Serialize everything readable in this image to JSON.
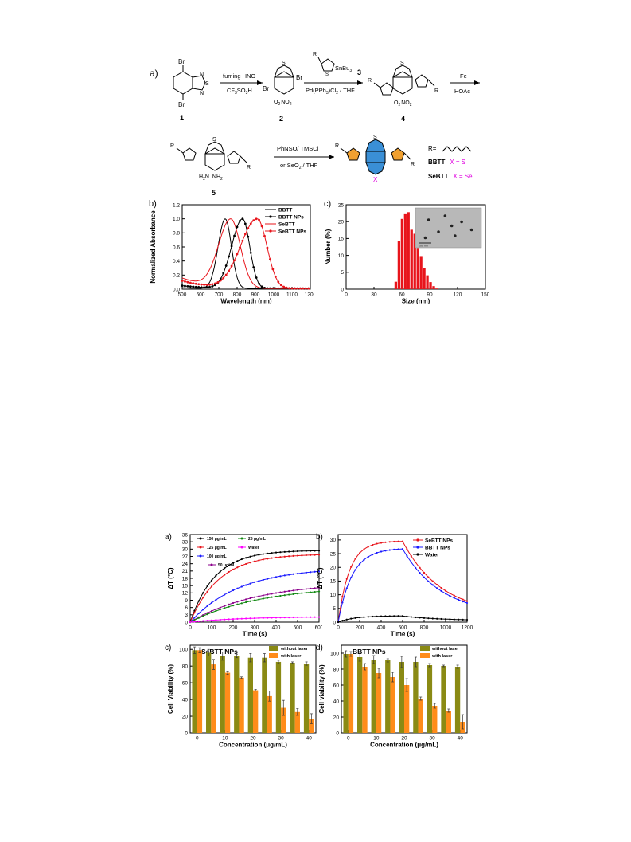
{
  "scheme": {
    "panel": "a)",
    "labels": {
      "c1": "1",
      "c2": "2",
      "c3": "3",
      "c4": "4",
      "c5": "5",
      "br": "Br",
      "no2": "NO",
      "o2n": "O",
      "nh2": "NH",
      "h2n": "H",
      "n": "N",
      "s": "S",
      "r": "R",
      "sub2": "2",
      "sub3": "3",
      "snbu": "SnBu",
      "x": "X"
    },
    "reagents": {
      "step1_top": "fuming HNO",
      "step1_bottom": "CF",
      "step1_so3h": "SO",
      "step1_h": "H",
      "step2_bottom": "Pd(PPh",
      "step2_cl": ")Cl",
      "step2_thf": " / THF",
      "step3_top": "Fe",
      "step3_bottom": "HOAc",
      "step4_top": "PhNSO/ TMSCl",
      "step4_bottom": "or SeO",
      "step4_thf": " / THF"
    },
    "legend": {
      "r_eq": "R=",
      "bbtt": "BBTT",
      "bbtt_x": "X = S",
      "sebtt": "SeBTT",
      "sebtt_x": "X = Se"
    }
  },
  "panel_b_top": {
    "label": "b)",
    "chart_data": {
      "type": "line",
      "xlabel": "Wavelength (nm)",
      "ylabel": "Normalized Absorbance",
      "xlim": [
        500,
        1200
      ],
      "ylim": [
        0.0,
        1.2
      ],
      "xticks": [
        "500",
        "600",
        "700",
        "800",
        "900",
        "1000",
        "1100",
        "1200"
      ],
      "yticks": [
        "0.0",
        "0.2",
        "0.4",
        "0.6",
        "0.8",
        "1.0",
        "1.2"
      ],
      "legend_position": "top-right",
      "series": [
        {
          "name": "BBTT",
          "color": "#000000",
          "marker": false,
          "peak": 735,
          "wl": 55,
          "wr": 48,
          "base": 0.02
        },
        {
          "name": "BBTT NPs",
          "color": "#000000",
          "marker": true,
          "peak": 830,
          "wl": 85,
          "wr": 55,
          "base": 0.05
        },
        {
          "name": "SeBTT",
          "color": "#e8141b",
          "marker": false,
          "peak": 765,
          "wl": 95,
          "wr": 75,
          "base": 0.16
        },
        {
          "name": "SeBTT NPs",
          "color": "#e8141b",
          "marker": true,
          "peak": 910,
          "wl": 130,
          "wr": 75,
          "base": 0.12
        }
      ]
    }
  },
  "panel_c_top": {
    "label": "c)",
    "chart_data": {
      "type": "bar",
      "xlabel": "Size (nm)",
      "ylabel": "Number (%)",
      "xlim": [
        0,
        150
      ],
      "ylim": [
        0,
        25
      ],
      "xticks": [
        "0",
        "30",
        "60",
        "90",
        "120",
        "150"
      ],
      "yticks": [
        "0",
        "5",
        "10",
        "15",
        "20",
        "25"
      ],
      "bin_width": 3.4,
      "x": [
        53.5,
        56.9,
        60.3,
        63.7,
        67.1,
        70.5,
        73.9,
        77.3,
        80.7,
        84.1,
        87.5,
        90.9,
        94.3,
        97.7
      ],
      "values": [
        2.2,
        14.2,
        20.8,
        22.2,
        22.8,
        17.6,
        16.4,
        12.2,
        9.8,
        6.2,
        4.1,
        2.1,
        0.9,
        0.2
      ],
      "color": "#e8141b",
      "inset_scale_text": "200 nm"
    }
  },
  "panel_a_bottom": {
    "label": "a)",
    "chart_data": {
      "type": "line",
      "xlabel": "Time (s)",
      "ylabel": "ΔT (°C)",
      "xlim": [
        0,
        600
      ],
      "ylim": [
        0,
        36
      ],
      "xticks": [
        "0",
        "100",
        "200",
        "300",
        "400",
        "500",
        "600"
      ],
      "yticks": [
        "0",
        "3",
        "6",
        "9",
        "12",
        "15",
        "18",
        "21",
        "24",
        "27",
        "30",
        "33",
        "36"
      ],
      "series": [
        {
          "name": "150 μg/mL",
          "color": "#000000",
          "final": 29.5,
          "tau": 115
        },
        {
          "name": "125 μg/mL",
          "color": "#e8141b",
          "final": 28.0,
          "tau": 135
        },
        {
          "name": "100 μg/mL",
          "color": "#1a1aff",
          "final": 22.5,
          "tau": 230
        },
        {
          "name": "50 μg/mL",
          "color": "#8b008b",
          "final": 16.5,
          "tau": 310
        },
        {
          "name": "25 μg/mL",
          "color": "#118811",
          "final": 15.0,
          "tau": 330
        },
        {
          "name": "Water",
          "color": "#ff00ff",
          "final": 2.3,
          "tau": 250
        }
      ]
    }
  },
  "panel_b_bottom": {
    "label": "b)",
    "chart_data": {
      "type": "line",
      "xlabel": "Time (s)",
      "ylabel": "ΔT (°C)",
      "xlim": [
        0,
        1200
      ],
      "ylim": [
        0,
        32
      ],
      "xticks": [
        "0",
        "200",
        "400",
        "600",
        "800",
        "1000",
        "1200"
      ],
      "yticks": [
        "0",
        "5",
        "10",
        "15",
        "20",
        "25",
        "30"
      ],
      "series": [
        {
          "name": "SeBTT NPs",
          "color": "#e8141b",
          "final": 29.6,
          "tau": 105,
          "off": 600,
          "decay": 360,
          "end": 2.6
        },
        {
          "name": "BBTT NPs",
          "color": "#1a1aff",
          "final": 27.0,
          "tau": 130,
          "off": 600,
          "decay": 360,
          "end": 2.4
        },
        {
          "name": "Water",
          "color": "#000000",
          "final": 2.3,
          "tau": 150,
          "off": 600,
          "decay": 330,
          "end": 0.6
        }
      ]
    }
  },
  "panel_c_bottom": {
    "label": "c)",
    "chart_data": {
      "type": "bar",
      "title": "SeBTT NPs",
      "xlabel": "Concentration (μg/mL)",
      "ylabel": "Cell Viability (%)",
      "xlim": [
        -2.5,
        42.5
      ],
      "ylim": [
        0,
        105
      ],
      "xticks": [
        "0",
        "10",
        "20",
        "30",
        "40"
      ],
      "yticks": [
        "0",
        "20",
        "40",
        "60",
        "80",
        "100"
      ],
      "categories": [
        0,
        5,
        10,
        15,
        20,
        25,
        30,
        35,
        40
      ],
      "series": [
        {
          "name": "without laser",
          "color": "#8a8a14",
          "values": [
            99,
            96,
            92,
            92,
            90,
            90,
            85,
            84,
            83
          ],
          "err": [
            4,
            4,
            5,
            2,
            5,
            5,
            2,
            1,
            2
          ]
        },
        {
          "name": "with laser",
          "color": "#ff8c1a",
          "values": [
            99,
            82,
            72,
            66,
            51,
            44,
            30,
            25,
            17
          ],
          "err": [
            3,
            6,
            2,
            1,
            1,
            6,
            9,
            4,
            6
          ]
        }
      ]
    }
  },
  "panel_d_bottom": {
    "label": "d)",
    "chart_data": {
      "type": "bar",
      "title": "BBTT NPs",
      "xlabel": "Concentration (μg/mL)",
      "ylabel": "Cell viability (%)",
      "xlim": [
        -2.5,
        42.5
      ],
      "ylim": [
        0,
        110
      ],
      "xticks": [
        "0",
        "10",
        "20",
        "30",
        "40"
      ],
      "yticks": [
        "0",
        "20",
        "40",
        "60",
        "80",
        "100"
      ],
      "categories": [
        0,
        5,
        10,
        15,
        20,
        25,
        30,
        35,
        40
      ],
      "series": [
        {
          "name": "without laser",
          "color": "#8a8a14",
          "values": [
            99,
            95,
            92,
            91,
            89,
            89,
            85,
            84,
            83
          ],
          "err": [
            4,
            5,
            5,
            2,
            7,
            6,
            2,
            1,
            2
          ]
        },
        {
          "name": "with laser",
          "color": "#ff8c1a",
          "values": [
            99,
            83,
            75,
            70,
            60,
            43,
            34,
            28,
            14
          ],
          "err": [
            3,
            4,
            6,
            6,
            8,
            2,
            3,
            2,
            9
          ]
        }
      ]
    }
  }
}
